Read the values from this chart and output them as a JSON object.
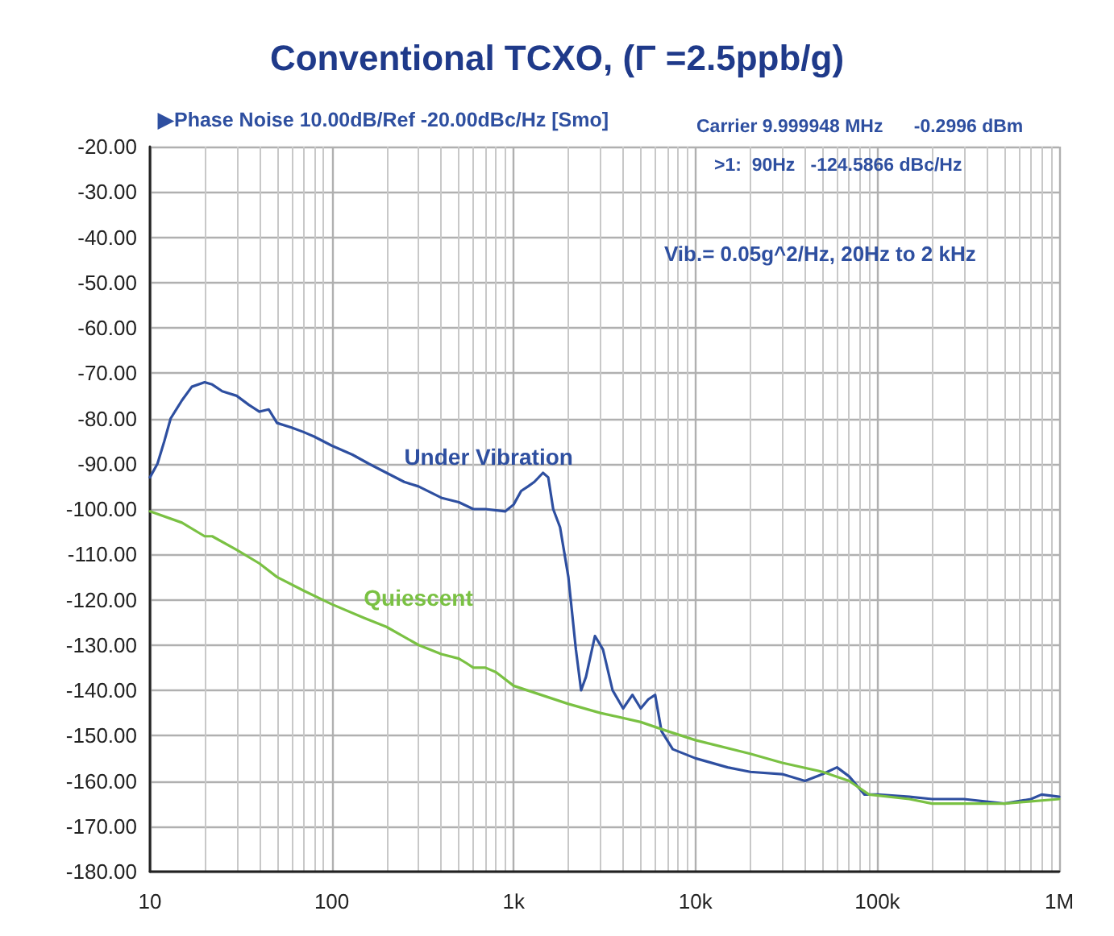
{
  "chart_data": {
    "type": "line",
    "title": "Conventional TCXO, (Γ =2.5ppb/g)",
    "annotations": [
      "▶Phase Noise 10.00dB/Ref -20.00dBc/Hz [Smo]",
      "Carrier 9.999948 MHz      -0.2996 dBm",
      ">1:  90Hz   -124.5866 dBc/Hz",
      "Vib.= 0.05g^2/Hz, 20Hz to 2 kHz"
    ],
    "log": "x",
    "grid": true,
    "legend": false,
    "marker": "none",
    "line_style": "solid",
    "xlim": [
      10,
      1000000
    ],
    "xticks": [
      {
        "value": 10,
        "label": "10"
      },
      {
        "value": 100,
        "label": "100"
      },
      {
        "value": 1000,
        "label": "1k"
      },
      {
        "value": 10000,
        "label": "10k"
      },
      {
        "value": 100000,
        "label": "100k"
      },
      {
        "value": 1000000,
        "label": "1M"
      }
    ],
    "ylim": [
      -180,
      -20
    ],
    "yticks": [
      {
        "value": -180,
        "label": "-180.00"
      },
      {
        "value": -170,
        "label": "-170.00"
      },
      {
        "value": -160,
        "label": "-160.00"
      },
      {
        "value": -150,
        "label": "-150.00"
      },
      {
        "value": -140,
        "label": "-140.00"
      },
      {
        "value": -130,
        "label": "-130.00"
      },
      {
        "value": -120,
        "label": "-120.00"
      },
      {
        "value": -110,
        "label": "-110.00"
      },
      {
        "value": -100,
        "label": "-100.00"
      },
      {
        "value": -90,
        "label": "-90.00"
      },
      {
        "value": -80,
        "label": "-80.00"
      },
      {
        "value": -70,
        "label": "-70.00"
      },
      {
        "value": -60,
        "label": "-60.00"
      },
      {
        "value": -50,
        "label": "-50.00"
      },
      {
        "value": -40,
        "label": "-40.00"
      },
      {
        "value": -30,
        "label": "-30.00"
      },
      {
        "value": -20,
        "label": "-20.00"
      }
    ],
    "series": [
      {
        "name": "Under Vibration",
        "color": "#2e4fa0",
        "x": [
          10,
          11,
          12,
          13,
          15,
          17,
          20,
          22,
          25,
          30,
          35,
          40,
          45,
          50,
          60,
          70,
          80,
          100,
          130,
          160,
          200,
          250,
          300,
          400,
          500,
          600,
          700,
          900,
          1000,
          1100,
          1200,
          1300,
          1450,
          1550,
          1650,
          1800,
          2000,
          2200,
          2350,
          2500,
          2800,
          3100,
          3500,
          4000,
          4500,
          5000,
          5500,
          6000,
          6500,
          7500,
          10000,
          15000,
          20000,
          30000,
          40000,
          50000,
          60000,
          70000,
          85000,
          100000,
          150000,
          200000,
          300000,
          500000,
          700000,
          800000,
          1000000
        ],
        "values": [
          -93,
          -90,
          -85,
          -80,
          -76,
          -73,
          -72,
          -72.5,
          -74,
          -75,
          -77,
          -78.5,
          -78,
          -81,
          -82,
          -83,
          -84,
          -86,
          -88,
          -90,
          -92,
          -94,
          -95,
          -97.5,
          -98.5,
          -100,
          -100,
          -100.5,
          -99,
          -96,
          -95,
          -94,
          -92,
          -93,
          -100,
          -104,
          -115,
          -131,
          -140,
          -137,
          -128,
          -131,
          -140,
          -144,
          -141,
          -144,
          -142,
          -141,
          -149,
          -153,
          -155,
          -157,
          -158,
          -158.5,
          -160,
          -158.5,
          -157,
          -159,
          -163,
          -163,
          -163.5,
          -164,
          -164,
          -165,
          -164,
          -163,
          -163.5
        ]
      },
      {
        "name": "Quiescent",
        "color": "#7ac143",
        "x": [
          10,
          15,
          20,
          22,
          30,
          40,
          50,
          70,
          100,
          150,
          200,
          300,
          400,
          500,
          550,
          600,
          700,
          800,
          1000,
          2000,
          3000,
          5000,
          7000,
          10000,
          20000,
          30000,
          50000,
          70000,
          90000,
          150000,
          200000,
          300000,
          500000,
          1000000
        ],
        "values": [
          -100.5,
          -103,
          -106,
          -106,
          -109,
          -112,
          -115,
          -118,
          -121,
          -124,
          -126,
          -130,
          -132,
          -133,
          -134,
          -135,
          -135,
          -136,
          -139,
          -143,
          -145,
          -147,
          -149,
          -151,
          -154,
          -156,
          -158,
          -160,
          -163,
          -164,
          -165,
          -165,
          -165,
          -164
        ]
      }
    ]
  }
}
